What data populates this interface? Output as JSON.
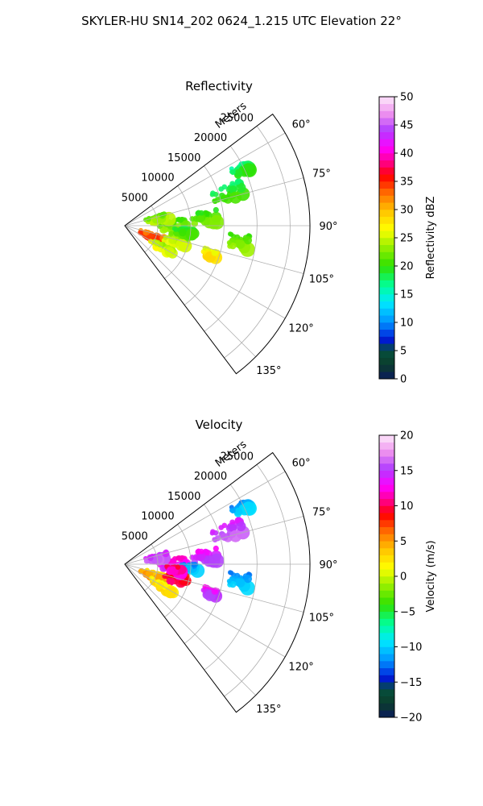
{
  "figure": {
    "suptitle": "SKYLER-HU  SN14_202  0624_1.215 UTC Elevation 22°"
  },
  "chart_data": [
    {
      "type": "heatmap",
      "title": "Reflectivity",
      "projection": "polar sector",
      "theta_range_deg": [
        53,
        143
      ],
      "theta_ticks": [
        "60°",
        "75°",
        "90°",
        "105°",
        "120°",
        "135°"
      ],
      "theta_tick_values": [
        60,
        75,
        90,
        105,
        120,
        135
      ],
      "r_label": "Meters",
      "r_range": [
        0,
        28000
      ],
      "r_ticks": [
        "5000",
        "10000",
        "15000",
        "20000",
        "25000"
      ],
      "r_tick_values": [
        5000,
        10000,
        15000,
        20000,
        25000
      ],
      "grid": true,
      "colorbar": {
        "label": "Reflectivity dBZ",
        "range": [
          0,
          50
        ],
        "ticks": [
          "0",
          "5",
          "10",
          "15",
          "20",
          "25",
          "30",
          "35",
          "40",
          "45",
          "50"
        ],
        "tick_values": [
          0,
          5,
          10,
          15,
          20,
          25,
          30,
          35,
          40,
          45,
          50
        ]
      },
      "echo_regions": [
        {
          "theta": 98,
          "r": 17500,
          "dtheta": 7,
          "dr": 3000,
          "value": 22
        },
        {
          "theta": 108,
          "r": 13500,
          "dtheta": 5,
          "dr": 2200,
          "value": 27
        },
        {
          "theta": 84,
          "r": 12000,
          "dtheta": 9,
          "dr": 4500,
          "value": 21
        },
        {
          "theta": 72,
          "r": 16500,
          "dtheta": 8,
          "dr": 5000,
          "value": 19
        },
        {
          "theta": 64,
          "r": 19500,
          "dtheta": 4,
          "dr": 3000,
          "value": 18
        },
        {
          "theta": 90,
          "r": 7000,
          "dtheta": 14,
          "dr": 5000,
          "value": 22
        },
        {
          "theta": 78,
          "r": 5000,
          "dtheta": 10,
          "dr": 3500,
          "value": 23
        },
        {
          "theta": 110,
          "r": 4500,
          "dtheta": 10,
          "dr": 4000,
          "value": 33
        },
        {
          "theta": 105,
          "r": 8000,
          "dtheta": 12,
          "dr": 3500,
          "value": 24
        },
        {
          "theta": 120,
          "r": 6500,
          "dtheta": 8,
          "dr": 4000,
          "value": 25
        },
        {
          "theta": 96,
          "r": 9000,
          "dtheta": 8,
          "dr": 3000,
          "value": 20
        }
      ]
    },
    {
      "type": "heatmap",
      "title": "Velocity",
      "projection": "polar sector",
      "theta_range_deg": [
        53,
        143
      ],
      "theta_ticks": [
        "60°",
        "75°",
        "90°",
        "105°",
        "120°",
        "135°"
      ],
      "theta_tick_values": [
        60,
        75,
        90,
        105,
        120,
        135
      ],
      "r_label": "Meters",
      "r_range": [
        0,
        28000
      ],
      "r_ticks": [
        "5000",
        "10000",
        "15000",
        "20000",
        "25000"
      ],
      "r_tick_values": [
        5000,
        10000,
        15000,
        20000,
        25000
      ],
      "grid": true,
      "colorbar": {
        "label": "Velocity (m/s)",
        "range": [
          -20,
          20
        ],
        "ticks": [
          "−20",
          "−15",
          "−10",
          "−5",
          "0",
          "5",
          "10",
          "15",
          "20"
        ],
        "tick_values": [
          -20,
          -15,
          -10,
          -5,
          0,
          5,
          10,
          15,
          20
        ]
      },
      "echo_regions": [
        {
          "theta": 98,
          "r": 17500,
          "dtheta": 7,
          "dr": 3000,
          "value": -11
        },
        {
          "theta": 108,
          "r": 13500,
          "dtheta": 5,
          "dr": 2200,
          "value": 14
        },
        {
          "theta": 84,
          "r": 12000,
          "dtheta": 9,
          "dr": 4500,
          "value": 14
        },
        {
          "theta": 72,
          "r": 16500,
          "dtheta": 8,
          "dr": 5000,
          "value": 15
        },
        {
          "theta": 64,
          "r": 19500,
          "dtheta": 4,
          "dr": 3000,
          "value": -11
        },
        {
          "theta": 90,
          "r": 7000,
          "dtheta": 14,
          "dr": 5000,
          "value": 13
        },
        {
          "theta": 93,
          "r": 9800,
          "dtheta": 6,
          "dr": 2500,
          "value": -11
        },
        {
          "theta": 78,
          "r": 5000,
          "dtheta": 10,
          "dr": 3500,
          "value": 15
        },
        {
          "theta": 110,
          "r": 4500,
          "dtheta": 10,
          "dr": 4000,
          "value": 4
        },
        {
          "theta": 105,
          "r": 8000,
          "dtheta": 12,
          "dr": 3500,
          "value": 9
        },
        {
          "theta": 120,
          "r": 6500,
          "dtheta": 8,
          "dr": 4000,
          "value": 2
        },
        {
          "theta": 96,
          "r": 7500,
          "dtheta": 6,
          "dr": 2500,
          "value": 11
        }
      ]
    }
  ]
}
